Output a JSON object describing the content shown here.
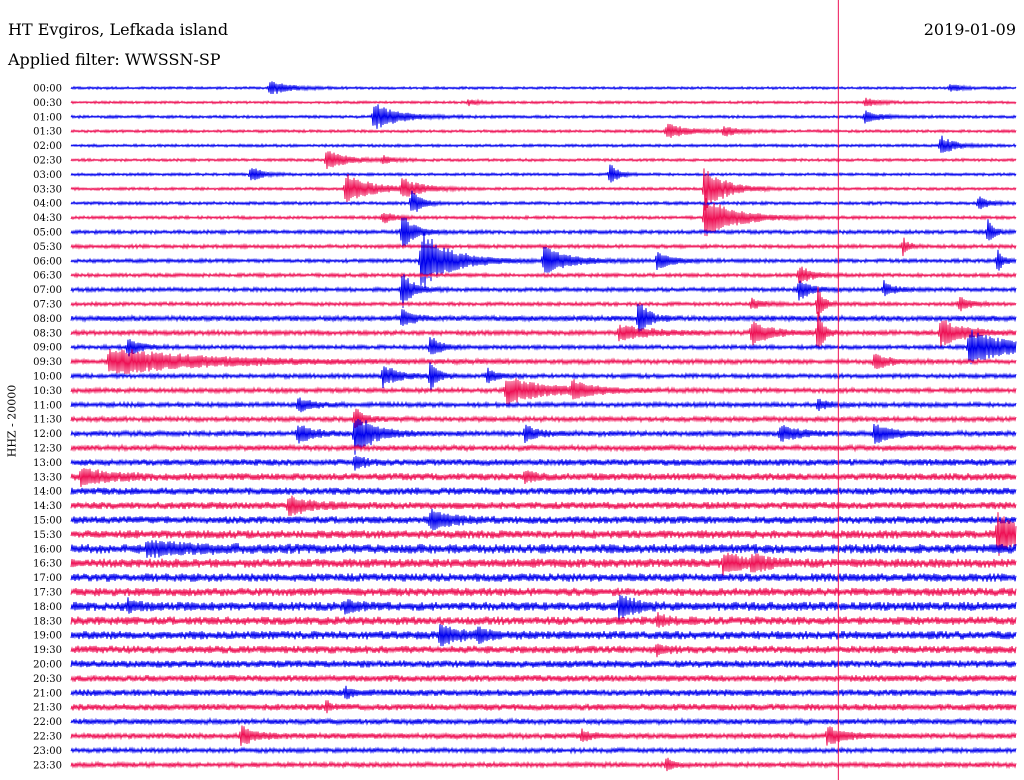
{
  "header": {
    "station": "HT Evgiros, Lefkada island",
    "filter": "Applied filter: WWSSN-SP",
    "date": "2019-01-09",
    "channel": "HHZ - 20000"
  },
  "colors": {
    "trace_a": "#0000ee",
    "trace_b": "#ee1155",
    "marker": "#ee1155"
  },
  "chart_data": {
    "type": "line",
    "title": "HT Evgiros, Lefkada island",
    "subtitle": "Applied filter: WWSSN-SP",
    "ylabel": "HHZ - 20000",
    "rows": [
      "00:00",
      "00:30",
      "01:00",
      "01:30",
      "02:00",
      "02:30",
      "03:00",
      "03:30",
      "04:00",
      "04:30",
      "05:00",
      "05:30",
      "06:00",
      "06:30",
      "07:00",
      "07:30",
      "08:00",
      "08:30",
      "09:00",
      "09:30",
      "10:00",
      "10:30",
      "11:00",
      "11:30",
      "12:00",
      "12:30",
      "13:00",
      "13:30",
      "14:00",
      "14:30",
      "15:00",
      "15:30",
      "16:00",
      "16:30",
      "17:00",
      "17:30",
      "18:00",
      "18:30",
      "19:00",
      "19:30",
      "20:00",
      "20:30",
      "21:00",
      "21:30",
      "22:00",
      "22:30",
      "23:00",
      "23:30"
    ],
    "row_colors": [
      "blue",
      "red",
      "blue",
      "red",
      "blue",
      "red",
      "blue",
      "red",
      "blue",
      "red",
      "blue",
      "red",
      "blue",
      "red",
      "blue",
      "red",
      "blue",
      "red",
      "blue",
      "red",
      "blue",
      "red",
      "blue",
      "red",
      "blue",
      "red",
      "blue",
      "red",
      "blue",
      "red",
      "blue",
      "red",
      "blue",
      "red",
      "blue",
      "red",
      "blue",
      "red",
      "blue",
      "red",
      "blue",
      "red",
      "blue",
      "red",
      "blue",
      "red",
      "blue",
      "red"
    ],
    "noise": [
      0.8,
      0.8,
      0.9,
      0.9,
      0.9,
      0.9,
      0.9,
      0.9,
      1.0,
      1.0,
      1.2,
      1.2,
      1.2,
      1.2,
      1.3,
      1.2,
      1.8,
      1.5,
      1.3,
      1.5,
      1.4,
      1.5,
      1.5,
      1.6,
      1.7,
      1.8,
      2.2,
      2.4,
      2.4,
      2.4,
      2.5,
      2.8,
      3.2,
      3.0,
      2.8,
      2.8,
      3.0,
      2.8,
      2.8,
      2.6,
      2.4,
      2.2,
      2.2,
      2.2,
      1.8,
      1.8,
      1.5,
      1.6
    ],
    "events": [
      {
        "row": 0,
        "t": 0.21,
        "amp": 7,
        "dur": 0.02
      },
      {
        "row": 0,
        "t": 0.93,
        "amp": 4,
        "dur": 0.012
      },
      {
        "row": 1,
        "t": 0.42,
        "amp": 3,
        "dur": 0.01
      },
      {
        "row": 1,
        "t": 0.84,
        "amp": 4,
        "dur": 0.015
      },
      {
        "row": 2,
        "t": 0.32,
        "amp": 14,
        "dur": 0.025
      },
      {
        "row": 2,
        "t": 0.84,
        "amp": 6,
        "dur": 0.015
      },
      {
        "row": 3,
        "t": 0.63,
        "amp": 8,
        "dur": 0.02
      },
      {
        "row": 3,
        "t": 0.69,
        "amp": 5,
        "dur": 0.015
      },
      {
        "row": 4,
        "t": 0.92,
        "amp": 11,
        "dur": 0.012
      },
      {
        "row": 5,
        "t": 0.27,
        "amp": 10,
        "dur": 0.02
      },
      {
        "row": 5,
        "t": 0.33,
        "amp": 4,
        "dur": 0.01
      },
      {
        "row": 6,
        "t": 0.19,
        "amp": 9,
        "dur": 0.01
      },
      {
        "row": 6,
        "t": 0.57,
        "amp": 12,
        "dur": 0.008
      },
      {
        "row": 7,
        "t": 0.29,
        "amp": 16,
        "dur": 0.025
      },
      {
        "row": 7,
        "t": 0.35,
        "amp": 10,
        "dur": 0.02
      },
      {
        "row": 7,
        "t": 0.67,
        "amp": 24,
        "dur": 0.02
      },
      {
        "row": 8,
        "t": 0.36,
        "amp": 14,
        "dur": 0.01
      },
      {
        "row": 8,
        "t": 0.96,
        "amp": 7,
        "dur": 0.01
      },
      {
        "row": 9,
        "t": 0.33,
        "amp": 6,
        "dur": 0.012
      },
      {
        "row": 9,
        "t": 0.67,
        "amp": 22,
        "dur": 0.03
      },
      {
        "row": 10,
        "t": 0.35,
        "amp": 20,
        "dur": 0.012
      },
      {
        "row": 10,
        "t": 0.97,
        "amp": 14,
        "dur": 0.006
      },
      {
        "row": 11,
        "t": 0.88,
        "amp": 10,
        "dur": 0.006
      },
      {
        "row": 12,
        "t": 0.37,
        "amp": 30,
        "dur": 0.03
      },
      {
        "row": 12,
        "t": 0.5,
        "amp": 14,
        "dur": 0.025
      },
      {
        "row": 12,
        "t": 0.62,
        "amp": 9,
        "dur": 0.015
      },
      {
        "row": 12,
        "t": 0.98,
        "amp": 12,
        "dur": 0.006
      },
      {
        "row": 13,
        "t": 0.77,
        "amp": 10,
        "dur": 0.012
      },
      {
        "row": 14,
        "t": 0.35,
        "amp": 22,
        "dur": 0.01
      },
      {
        "row": 14,
        "t": 0.77,
        "amp": 12,
        "dur": 0.012
      },
      {
        "row": 14,
        "t": 0.86,
        "amp": 8,
        "dur": 0.01
      },
      {
        "row": 15,
        "t": 0.72,
        "amp": 6,
        "dur": 0.01
      },
      {
        "row": 15,
        "t": 0.79,
        "amp": 20,
        "dur": 0.006
      },
      {
        "row": 15,
        "t": 0.94,
        "amp": 8,
        "dur": 0.01
      },
      {
        "row": 16,
        "t": 0.35,
        "amp": 10,
        "dur": 0.01
      },
      {
        "row": 16,
        "t": 0.6,
        "amp": 18,
        "dur": 0.01
      },
      {
        "row": 17,
        "t": 0.58,
        "amp": 8,
        "dur": 0.03
      },
      {
        "row": 17,
        "t": 0.72,
        "amp": 12,
        "dur": 0.02
      },
      {
        "row": 17,
        "t": 0.79,
        "amp": 24,
        "dur": 0.006
      },
      {
        "row": 17,
        "t": 0.92,
        "amp": 14,
        "dur": 0.025
      },
      {
        "row": 18,
        "t": 0.06,
        "amp": 10,
        "dur": 0.012
      },
      {
        "row": 18,
        "t": 0.38,
        "amp": 12,
        "dur": 0.01
      },
      {
        "row": 18,
        "t": 0.95,
        "amp": 18,
        "dur": 0.04
      },
      {
        "row": 19,
        "t": 0.04,
        "amp": 14,
        "dur": 0.09
      },
      {
        "row": 19,
        "t": 0.85,
        "amp": 8,
        "dur": 0.015
      },
      {
        "row": 20,
        "t": 0.33,
        "amp": 12,
        "dur": 0.015
      },
      {
        "row": 20,
        "t": 0.38,
        "amp": 16,
        "dur": 0.008
      },
      {
        "row": 20,
        "t": 0.44,
        "amp": 8,
        "dur": 0.01
      },
      {
        "row": 21,
        "t": 0.46,
        "amp": 14,
        "dur": 0.04
      },
      {
        "row": 21,
        "t": 0.53,
        "amp": 8,
        "dur": 0.02
      },
      {
        "row": 22,
        "t": 0.24,
        "amp": 8,
        "dur": 0.015
      },
      {
        "row": 22,
        "t": 0.79,
        "amp": 6,
        "dur": 0.01
      },
      {
        "row": 23,
        "t": 0.3,
        "amp": 12,
        "dur": 0.01
      },
      {
        "row": 24,
        "t": 0.24,
        "amp": 10,
        "dur": 0.015
      },
      {
        "row": 24,
        "t": 0.3,
        "amp": 22,
        "dur": 0.02
      },
      {
        "row": 24,
        "t": 0.48,
        "amp": 8,
        "dur": 0.015
      },
      {
        "row": 24,
        "t": 0.75,
        "amp": 8,
        "dur": 0.02
      },
      {
        "row": 24,
        "t": 0.85,
        "amp": 10,
        "dur": 0.02
      },
      {
        "row": 26,
        "t": 0.3,
        "amp": 8,
        "dur": 0.01
      },
      {
        "row": 27,
        "t": 0.01,
        "amp": 8,
        "dur": 0.03
      },
      {
        "row": 27,
        "t": 0.48,
        "amp": 6,
        "dur": 0.01
      },
      {
        "row": 29,
        "t": 0.23,
        "amp": 10,
        "dur": 0.02
      },
      {
        "row": 30,
        "t": 0.38,
        "amp": 10,
        "dur": 0.02
      },
      {
        "row": 31,
        "t": 0.98,
        "amp": 22,
        "dur": 0.02
      },
      {
        "row": 32,
        "t": 0.08,
        "amp": 6,
        "dur": 0.05
      },
      {
        "row": 33,
        "t": 0.69,
        "amp": 10,
        "dur": 0.02
      },
      {
        "row": 33,
        "t": 0.72,
        "amp": 6,
        "dur": 0.02
      },
      {
        "row": 36,
        "t": 0.06,
        "amp": 6,
        "dur": 0.01
      },
      {
        "row": 36,
        "t": 0.29,
        "amp": 6,
        "dur": 0.01
      },
      {
        "row": 36,
        "t": 0.58,
        "amp": 12,
        "dur": 0.015
      },
      {
        "row": 37,
        "t": 0.62,
        "amp": 6,
        "dur": 0.01
      },
      {
        "row": 38,
        "t": 0.39,
        "amp": 10,
        "dur": 0.02
      },
      {
        "row": 38,
        "t": 0.43,
        "amp": 6,
        "dur": 0.01
      },
      {
        "row": 39,
        "t": 0.62,
        "amp": 5,
        "dur": 0.01
      },
      {
        "row": 42,
        "t": 0.29,
        "amp": 5,
        "dur": 0.01
      },
      {
        "row": 43,
        "t": 0.27,
        "amp": 6,
        "dur": 0.005
      },
      {
        "row": 45,
        "t": 0.18,
        "amp": 10,
        "dur": 0.015
      },
      {
        "row": 45,
        "t": 0.54,
        "amp": 6,
        "dur": 0.01
      },
      {
        "row": 45,
        "t": 0.8,
        "amp": 10,
        "dur": 0.015
      },
      {
        "row": 47,
        "t": 0.63,
        "amp": 8,
        "dur": 0.006
      }
    ],
    "marker_t": 0.812
  }
}
